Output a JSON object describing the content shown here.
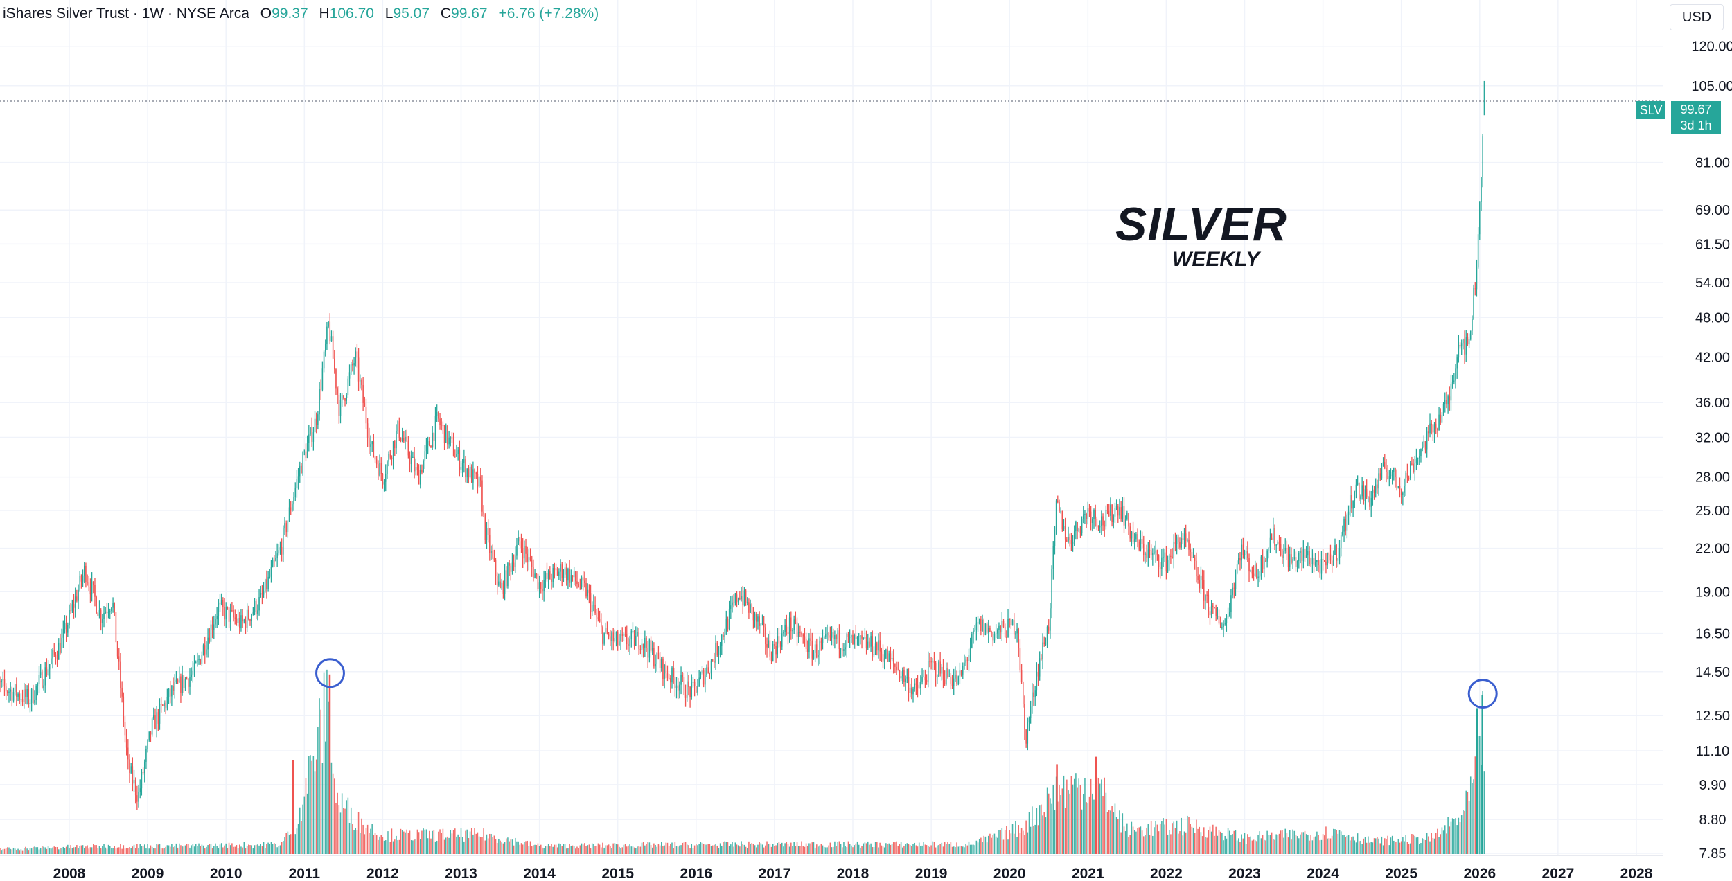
{
  "header": {
    "title": "iShares Silver Trust · 1W · NYSE Arca",
    "open_label": "O",
    "open": "99.37",
    "high_label": "H",
    "high": "106.70",
    "low_label": "L",
    "low": "95.07",
    "close_label": "C",
    "close": "99.67",
    "change": "+6.76 (+7.28%)"
  },
  "currency": "USD",
  "annotation": {
    "title": "SILVER",
    "subtitle": "WEEKLY"
  },
  "price_tag": {
    "symbol": "SLV",
    "price": "99.67",
    "countdown": "3d 1h"
  },
  "colors": {
    "up": "#26a69a",
    "down": "#ef5350",
    "circle": "#3a5ecf",
    "grid": "#f0f3fa",
    "axis_text": "#131722"
  },
  "chart_data": {
    "type": "candlestick",
    "interval": "1W",
    "y_scale": "log",
    "ylim": [
      7.85,
      132
    ],
    "y_ticks": [
      "120.00",
      "105.00",
      "81.00",
      "69.00",
      "61.50",
      "54.00",
      "48.00",
      "42.00",
      "36.00",
      "32.00",
      "28.00",
      "25.00",
      "22.00",
      "19.00",
      "16.50",
      "14.50",
      "12.50",
      "11.10",
      "9.90",
      "8.80",
      "7.85"
    ],
    "x_ticks": [
      "2008",
      "2009",
      "2010",
      "2011",
      "2012",
      "2013",
      "2014",
      "2015",
      "2016",
      "2017",
      "2018",
      "2019",
      "2020",
      "2021",
      "2022",
      "2023",
      "2024",
      "2025",
      "2026",
      "2027",
      "2028"
    ],
    "price_path": [
      [
        "2007.0",
        14.0
      ],
      [
        "2007.5",
        13.2
      ],
      [
        "2007.9",
        16.0
      ],
      [
        "2008.2",
        20.5
      ],
      [
        "2008.4",
        17.5
      ],
      [
        "2008.55",
        18.5
      ],
      [
        "2008.75",
        10.5
      ],
      [
        "2008.88",
        9.5
      ],
      [
        "2009.05",
        12.0
      ],
      [
        "2009.3",
        13.5
      ],
      [
        "2009.6",
        14.5
      ],
      [
        "2009.9",
        18.0
      ],
      [
        "2010.2",
        17.0
      ],
      [
        "2010.45",
        18.5
      ],
      [
        "2010.7",
        22.0
      ],
      [
        "2010.95",
        29.0
      ],
      [
        "2011.15",
        34.0
      ],
      [
        "2011.31",
        47.0
      ],
      [
        "2011.45",
        35.0
      ],
      [
        "2011.65",
        42.0
      ],
      [
        "2011.85",
        31.0
      ],
      [
        "2012.0",
        28.0
      ],
      [
        "2012.2",
        33.0
      ],
      [
        "2012.45",
        28.0
      ],
      [
        "2012.7",
        34.0
      ],
      [
        "2012.95",
        30.0
      ],
      [
        "2013.25",
        27.0
      ],
      [
        "2013.3",
        23.5
      ],
      [
        "2013.5",
        19.0
      ],
      [
        "2013.75",
        22.5
      ],
      [
        "2014.0",
        19.5
      ],
      [
        "2014.3",
        20.5
      ],
      [
        "2014.6",
        19.0
      ],
      [
        "2014.8",
        16.5
      ],
      [
        "2015.0",
        16.0
      ],
      [
        "2015.3",
        16.2
      ],
      [
        "2015.6",
        14.5
      ],
      [
        "2015.95",
        13.5
      ],
      [
        "2016.2",
        15.0
      ],
      [
        "2016.55",
        19.0
      ],
      [
        "2016.8",
        17.0
      ],
      [
        "2016.95",
        15.5
      ],
      [
        "2017.2",
        17.0
      ],
      [
        "2017.5",
        15.5
      ],
      [
        "2017.75",
        16.2
      ],
      [
        "2018.0",
        16.0
      ],
      [
        "2018.3",
        15.8
      ],
      [
        "2018.6",
        14.5
      ],
      [
        "2018.8",
        13.5
      ],
      [
        "2019.0",
        14.8
      ],
      [
        "2019.35",
        14.0
      ],
      [
        "2019.6",
        17.0
      ],
      [
        "2019.8",
        16.5
      ],
      [
        "2020.1",
        17.0
      ],
      [
        "2020.2",
        11.5
      ],
      [
        "2020.35",
        14.5
      ],
      [
        "2020.5",
        17.0
      ],
      [
        "2020.6",
        25.5
      ],
      [
        "2020.75",
        22.5
      ],
      [
        "2021.0",
        25.0
      ],
      [
        "2021.2",
        24.0
      ],
      [
        "2021.4",
        25.5
      ],
      [
        "2021.6",
        22.5
      ],
      [
        "2021.8",
        21.5
      ],
      [
        "2022.0",
        21.0
      ],
      [
        "2022.2",
        23.0
      ],
      [
        "2022.4",
        20.0
      ],
      [
        "2022.6",
        17.5
      ],
      [
        "2022.75",
        17.0
      ],
      [
        "2022.95",
        22.0
      ],
      [
        "2023.15",
        20.0
      ],
      [
        "2023.35",
        23.0
      ],
      [
        "2023.6",
        21.0
      ],
      [
        "2023.8",
        21.5
      ],
      [
        "2024.0",
        20.5
      ],
      [
        "2024.2",
        22.0
      ],
      [
        "2024.4",
        27.0
      ],
      [
        "2024.6",
        26.0
      ],
      [
        "2024.8",
        29.0
      ],
      [
        "2025.0",
        27.0
      ],
      [
        "2025.2",
        30.0
      ],
      [
        "2025.4",
        33.0
      ],
      [
        "2025.6",
        36.0
      ],
      [
        "2025.75",
        45.0
      ],
      [
        "2025.85",
        43.0
      ],
      [
        "2025.95",
        55.0
      ],
      [
        "2026.0",
        70.0
      ],
      [
        "2026.04",
        90.0
      ],
      [
        "2026.06",
        99.67
      ]
    ],
    "volume_profile": [
      [
        "2007.0",
        0.03
      ],
      [
        "2008.5",
        0.05
      ],
      [
        "2009.5",
        0.05
      ],
      [
        "2010.7",
        0.06
      ],
      [
        "2010.9",
        0.2
      ],
      [
        "2011.3",
        0.95
      ],
      [
        "2011.4",
        0.35
      ],
      [
        "2011.7",
        0.2
      ],
      [
        "2012.0",
        0.12
      ],
      [
        "2013.3",
        0.12
      ],
      [
        "2014.0",
        0.05
      ],
      [
        "2016.5",
        0.06
      ],
      [
        "2019.5",
        0.06
      ],
      [
        "2019.9",
        0.12
      ],
      [
        "2020.2",
        0.18
      ],
      [
        "2020.6",
        0.4
      ],
      [
        "2021.1",
        0.45
      ],
      [
        "2021.5",
        0.15
      ],
      [
        "2022.3",
        0.18
      ],
      [
        "2023.0",
        0.1
      ],
      [
        "2024.2",
        0.14
      ],
      [
        "2024.6",
        0.08
      ],
      [
        "2025.4",
        0.1
      ],
      [
        "2025.8",
        0.25
      ],
      [
        "2026.0",
        0.58
      ],
      [
        "2026.04",
        0.85
      ],
      [
        "2026.06",
        0.7
      ]
    ],
    "volume_peaks": [
      {
        "x": "2011.32",
        "v": 0.96,
        "up": false
      },
      {
        "x": "2026.03",
        "v": 0.85,
        "up": true
      },
      {
        "x": "2021.1",
        "v": 0.52,
        "up": false
      },
      {
        "x": "2020.6",
        "v": 0.48,
        "up": false
      },
      {
        "x": "2010.85",
        "v": 0.5,
        "up": false
      },
      {
        "x": "2025.96",
        "v": 0.78,
        "up": true
      }
    ],
    "circled_volume_peaks": [
      "2011.32",
      "2026.03"
    ]
  }
}
